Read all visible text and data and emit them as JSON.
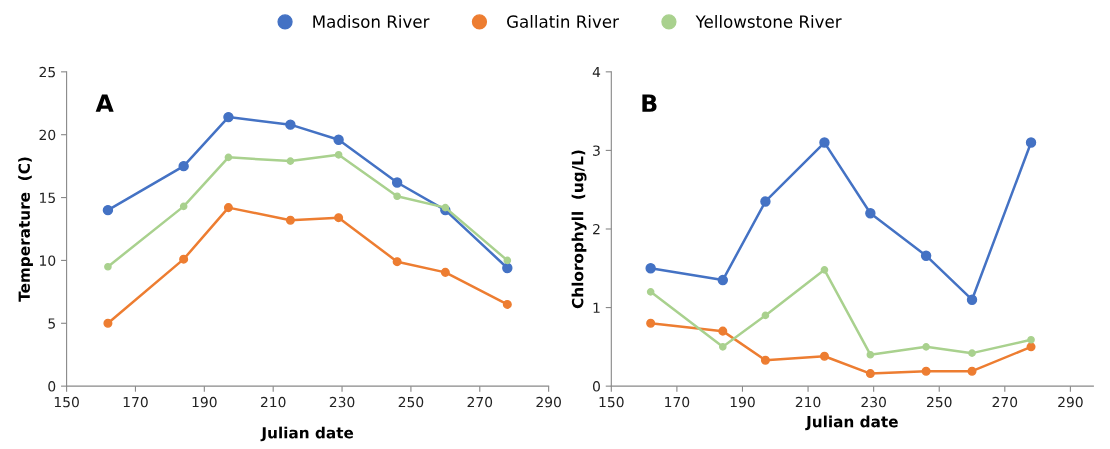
{
  "chart_data": [
    {
      "type": "line",
      "ylabel": "Temperature  (C)",
      "xlabel": "Julian date",
      "annotations": [
        "A"
      ],
      "legend": "top",
      "marker": "circle",
      "line_style": "solid",
      "grid": false,
      "x": [
        162,
        184,
        197,
        215,
        229,
        246,
        260,
        278
      ],
      "xlim": [
        150,
        290
      ],
      "xticks": [
        150,
        170,
        190,
        210,
        230,
        250,
        270,
        290
      ],
      "ylim": [
        0,
        25
      ],
      "yticks": [
        0,
        5,
        10,
        15,
        20,
        25
      ],
      "series": [
        {
          "name": "Madison River",
          "color": "#4472c4",
          "values": [
            14,
            17.5,
            21.4,
            20.8,
            19.6,
            16.2,
            14,
            9.4
          ]
        },
        {
          "name": "Gallatin River",
          "color": "#ed7d31",
          "values": [
            5,
            10.1,
            14.2,
            13.2,
            13.4,
            9.9,
            9.05,
            6.5
          ]
        },
        {
          "name": "Yellowstone River",
          "color": "#a9d18e",
          "values": [
            9.5,
            14.3,
            18.2,
            17.9,
            18.4,
            15.1,
            14.2,
            10
          ]
        }
      ]
    },
    {
      "type": "line",
      "ylabel": "Chlorophyll  (ug/L)",
      "xlabel": "Julian date",
      "annotations": [
        "B"
      ],
      "marker": "circle",
      "line_style": "solid",
      "grid": false,
      "x": [
        162,
        184,
        197,
        215,
        229,
        246,
        260,
        278
      ],
      "xlim": [
        150,
        297
      ],
      "xticks": [
        150,
        170,
        190,
        210,
        230,
        250,
        270,
        290
      ],
      "ylim": [
        0,
        4
      ],
      "yticks": [
        0,
        1,
        2,
        3,
        4
      ],
      "series": [
        {
          "color": "#4472c4",
          "values": [
            1.5,
            1.35,
            2.35,
            3.1,
            2.2,
            1.66,
            1.1,
            3.1
          ]
        },
        {
          "color": "#ed7d31",
          "values": [
            0.8,
            0.7,
            0.33,
            0.38,
            0.16,
            0.19,
            0.19,
            0.5
          ]
        },
        {
          "color": "#a9d18e",
          "values": [
            1.2,
            0.5,
            0.9,
            1.48,
            0.4,
            0.5,
            0.42,
            0.59
          ]
        }
      ]
    }
  ]
}
